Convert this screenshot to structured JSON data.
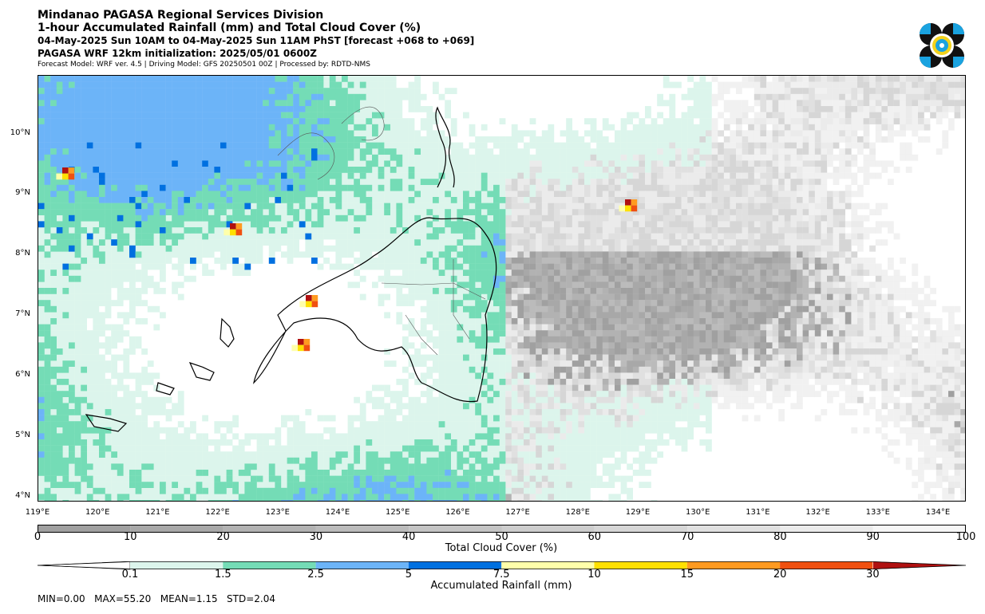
{
  "header": {
    "title": "Mindanao PAGASA Regional Services Division",
    "subtitle": "1-hour Accumulated Rainfall (mm) and Total Cloud Cover (%)",
    "valid_time": "04-May-2025 Sun 10AM to 04-May-2025 Sun 11AM PhST [forecast +068 to +069]",
    "init": "PAGASA WRF 12km initialization: 2025/05/01 0600Z",
    "model_info": "Forecast Model: WRF ver. 4.5 | Driving Model: GFS 20250501 00Z | Processed by: RDTD-NMS"
  },
  "map": {
    "lat_labels": [
      "10°N",
      "9°N",
      "8°N",
      "7°N",
      "6°N",
      "5°N",
      "4°N"
    ],
    "lon_labels": [
      "119°E",
      "120°E",
      "121°E",
      "122°E",
      "123°E",
      "124°E",
      "125°E",
      "126°E",
      "127°E",
      "128°E",
      "129°E",
      "130°E",
      "131°E",
      "132°E",
      "133°E",
      "134°E"
    ],
    "cloud_color": "#a0a0a0",
    "rain_colors": [
      "#dcf5ec",
      "#74dcb6",
      "#6cb4f8",
      "#0070e0",
      "#ffffaa",
      "#ffe000",
      "#ff9a20",
      "#f05010",
      "#b01010"
    ]
  },
  "cloud_colorbar": {
    "ticks": [
      "0",
      "10",
      "20",
      "30",
      "40",
      "50",
      "60",
      "70",
      "80",
      "90",
      "100"
    ],
    "label": "Total Cloud Cover (%)"
  },
  "rain_colorbar": {
    "ticks": [
      "0.1",
      "1.5",
      "2.5",
      "5",
      "7.5",
      "10",
      "15",
      "20",
      "30"
    ],
    "label": "Accumulated Rainfall (mm)"
  },
  "stats": "MIN=0.00   MAX=55.20   MEAN=1.15   STD=2.04"
}
